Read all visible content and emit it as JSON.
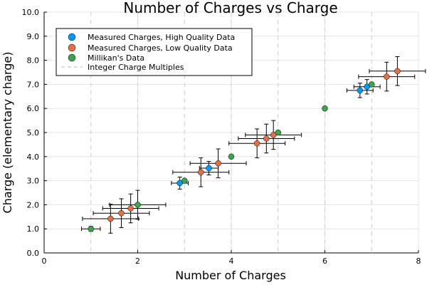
{
  "chart_data": {
    "type": "scatter",
    "title": "Number of Charges vs Charge",
    "xlabel": "Number of Charges",
    "ylabel": "Charge (elementary charge)",
    "xlim": [
      0,
      8
    ],
    "ylim": [
      0,
      10
    ],
    "xticks": [
      "0",
      "2",
      "4",
      "6",
      "8"
    ],
    "xtick_values": [
      0,
      2,
      4,
      6,
      8
    ],
    "yticks": [
      "0.0",
      "1.0",
      "2.0",
      "3.0",
      "4.0",
      "5.0",
      "6.0",
      "7.0",
      "8.0",
      "9.0",
      "10.0"
    ],
    "ytick_values": [
      0,
      1,
      2,
      3,
      4,
      5,
      6,
      7,
      8,
      9,
      10
    ],
    "grid": true,
    "legend_position": "top-left",
    "integer_lines": [
      1,
      2,
      3,
      4,
      5,
      6,
      7
    ],
    "series": [
      {
        "name": "Measured Charges, High Quality Data",
        "color": "#009af9",
        "points": [
          {
            "x": 2.9,
            "y": 2.9,
            "xerr": 0.18,
            "yerr": 0.25
          },
          {
            "x": 3.52,
            "y": 3.52,
            "xerr": 0.2,
            "yerr": 0.28
          },
          {
            "x": 6.75,
            "y": 6.75,
            "xerr": 0.28,
            "yerr": 0.3
          },
          {
            "x": 6.9,
            "y": 6.9,
            "xerr": 0.28,
            "yerr": 0.3
          }
        ]
      },
      {
        "name": "Measured Charges, Low Quality Data",
        "color": "#e26f46",
        "points": [
          {
            "x": 1.42,
            "y": 1.42,
            "xerr": 0.6,
            "yerr": 0.6
          },
          {
            "x": 1.65,
            "y": 1.65,
            "xerr": 0.6,
            "yerr": 0.6
          },
          {
            "x": 1.85,
            "y": 1.85,
            "xerr": 0.6,
            "yerr": 0.6
          },
          {
            "x": 3.35,
            "y": 3.35,
            "xerr": 0.6,
            "yerr": 0.6
          },
          {
            "x": 3.72,
            "y": 3.72,
            "xerr": 0.6,
            "yerr": 0.6
          },
          {
            "x": 4.55,
            "y": 4.55,
            "xerr": 0.6,
            "yerr": 0.6
          },
          {
            "x": 4.75,
            "y": 4.75,
            "xerr": 0.6,
            "yerr": 0.6
          },
          {
            "x": 4.9,
            "y": 4.9,
            "xerr": 0.6,
            "yerr": 0.6
          },
          {
            "x": 7.32,
            "y": 7.32,
            "xerr": 0.6,
            "yerr": 0.6
          },
          {
            "x": 7.55,
            "y": 7.55,
            "xerr": 0.6,
            "yerr": 0.6
          }
        ]
      },
      {
        "name": "Millikan's Data",
        "color": "#3da44d",
        "points": [
          {
            "x": 1.0,
            "y": 1.0,
            "xerr": 0.2,
            "yerr": 0.1
          },
          {
            "x": 2.0,
            "y": 2.0,
            "xerr": 0.6,
            "yerr": 0.6
          },
          {
            "x": 3.0,
            "y": 3.0
          },
          {
            "x": 4.0,
            "y": 4.0
          },
          {
            "x": 5.0,
            "y": 5.0
          },
          {
            "x": 6.0,
            "y": 6.0
          },
          {
            "x": 7.0,
            "y": 7.0
          }
        ]
      }
    ],
    "reference_line_label": "Integer Charge Multiples"
  }
}
